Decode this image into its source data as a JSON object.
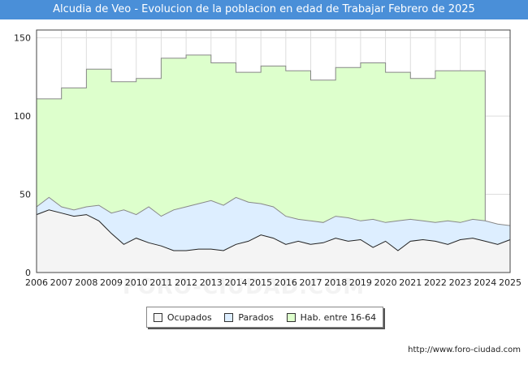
{
  "chart_data": {
    "type": "area",
    "title": "Alcudia de Veo - Evolucion de la poblacion en edad de Trabajar Febrero de 2025",
    "xlabel": "",
    "ylabel": "",
    "xlim": [
      2006,
      2025
    ],
    "ylim": [
      0,
      155
    ],
    "yticks": [
      0,
      50,
      100,
      150
    ],
    "xticks": [
      2006,
      2007,
      2008,
      2009,
      2010,
      2011,
      2012,
      2013,
      2014,
      2015,
      2016,
      2017,
      2018,
      2019,
      2020,
      2021,
      2022,
      2023,
      2024,
      2025
    ],
    "grid": true,
    "legend_position": "bottom-center",
    "series": [
      {
        "name": "Hab. entre 16-64",
        "color": "#ddffcc",
        "stroke": "#888888",
        "step": true,
        "years": [
          2006,
          2007,
          2008,
          2009,
          2010,
          2011,
          2012,
          2013,
          2014,
          2015,
          2016,
          2017,
          2018,
          2019,
          2020,
          2021,
          2022,
          2023,
          2024
        ],
        "values": [
          111,
          118,
          130,
          122,
          124,
          137,
          139,
          134,
          128,
          132,
          129,
          123,
          131,
          134,
          128,
          124,
          129,
          129,
          0
        ]
      },
      {
        "name": "Parados",
        "color": "#ddeeff",
        "stroke": "#888888",
        "x": [
          2006.0,
          2006.5,
          2007.0,
          2007.5,
          2008.0,
          2008.5,
          2009.0,
          2009.5,
          2010.0,
          2010.5,
          2011.0,
          2011.5,
          2012.0,
          2012.5,
          2013.0,
          2013.5,
          2014.0,
          2014.5,
          2015.0,
          2015.5,
          2016.0,
          2016.5,
          2017.0,
          2017.5,
          2018.0,
          2018.5,
          2019.0,
          2019.5,
          2020.0,
          2020.5,
          2021.0,
          2021.5,
          2022.0,
          2022.5,
          2023.0,
          2023.5,
          2024.0,
          2024.5,
          2025.0
        ],
        "values": [
          42,
          48,
          42,
          40,
          42,
          43,
          38,
          40,
          37,
          42,
          36,
          40,
          42,
          44,
          46,
          43,
          48,
          45,
          44,
          42,
          36,
          34,
          33,
          32,
          36,
          35,
          33,
          34,
          32,
          33,
          34,
          33,
          32,
          33,
          32,
          34,
          33,
          31,
          30
        ]
      },
      {
        "name": "Ocupados",
        "color": "#f4f4f4",
        "stroke": "#222222",
        "x": [
          2006.0,
          2006.5,
          2007.0,
          2007.5,
          2008.0,
          2008.5,
          2009.0,
          2009.5,
          2010.0,
          2010.5,
          2011.0,
          2011.5,
          2012.0,
          2012.5,
          2013.0,
          2013.5,
          2014.0,
          2014.5,
          2015.0,
          2015.5,
          2016.0,
          2016.5,
          2017.0,
          2017.5,
          2018.0,
          2018.5,
          2019.0,
          2019.5,
          2020.0,
          2020.5,
          2021.0,
          2021.5,
          2022.0,
          2022.5,
          2023.0,
          2023.5,
          2024.0,
          2024.5,
          2025.0
        ],
        "values": [
          37,
          40,
          38,
          36,
          37,
          33,
          25,
          18,
          22,
          19,
          17,
          14,
          14,
          15,
          15,
          14,
          18,
          20,
          24,
          22,
          18,
          20,
          18,
          19,
          22,
          20,
          21,
          16,
          20,
          14,
          20,
          21,
          20,
          18,
          21,
          22,
          20,
          18,
          21
        ]
      }
    ]
  },
  "legend": {
    "items": [
      {
        "label": "Ocupados",
        "color": "#f4f4f4"
      },
      {
        "label": "Parados",
        "color": "#ddeeff"
      },
      {
        "label": "Hab. entre 16-64",
        "color": "#ddffcc"
      }
    ]
  },
  "watermark": "FORO-CIUDAD.COM",
  "footer": {
    "url": "http://www.foro-ciudad.com"
  }
}
